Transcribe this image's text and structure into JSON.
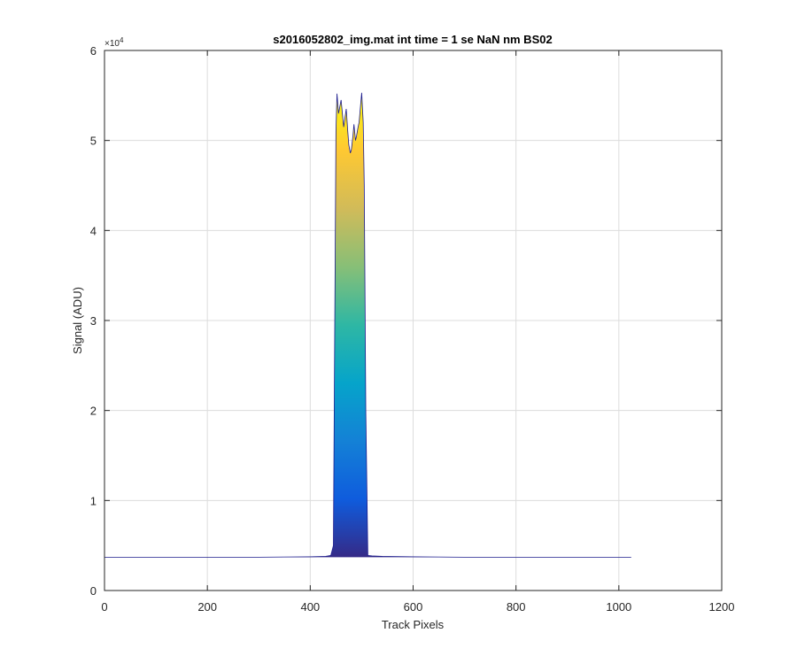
{
  "chart_data": {
    "type": "area",
    "title": "s2016052802_img.mat int time = 1 se  NaN nm BS02",
    "xlabel": "Track Pixels",
    "ylabel": "Signal (ADU)",
    "xlim": [
      0,
      1200
    ],
    "ylim": [
      0,
      60000
    ],
    "xticks": [
      0,
      200,
      400,
      600,
      800,
      1000,
      1200
    ],
    "xtick_labels": [
      "0",
      "200",
      "400",
      "600",
      "800",
      "1000",
      "1200"
    ],
    "yticks": [
      0,
      10000,
      20000,
      30000,
      40000,
      50000,
      60000
    ],
    "ytick_labels": [
      "0",
      "1",
      "2",
      "3",
      "4",
      "5",
      "6"
    ],
    "y_exponent_label": "×10",
    "y_exponent_power": "4",
    "grid": true,
    "colormap": [
      "#352a87",
      "#0f5cdd",
      "#1481d6",
      "#06a4ca",
      "#2eb7a4",
      "#87bf77",
      "#d1bb59",
      "#fec832",
      "#f9fb0e"
    ],
    "line_color": "#1a1a8c",
    "series": [
      {
        "x": [
          0,
          100,
          200,
          300,
          400,
          430,
          440,
          445,
          450,
          452,
          455,
          460,
          465,
          470,
          473,
          475,
          478,
          480,
          483,
          485,
          488,
          490,
          493,
          495,
          498,
          500,
          503,
          505,
          508,
          512,
          520,
          540,
          600,
          700,
          800,
          900,
          1024
        ],
        "y": [
          3700,
          3700,
          3700,
          3700,
          3750,
          3800,
          3900,
          5000,
          51000,
          55200,
          53000,
          54500,
          51500,
          53500,
          51000,
          49500,
          48600,
          49000,
          50500,
          51800,
          50000,
          50500,
          51500,
          52000,
          54000,
          55300,
          52000,
          45000,
          20000,
          3900,
          3850,
          3800,
          3750,
          3700,
          3700,
          3700,
          3700
        ]
      }
    ]
  }
}
